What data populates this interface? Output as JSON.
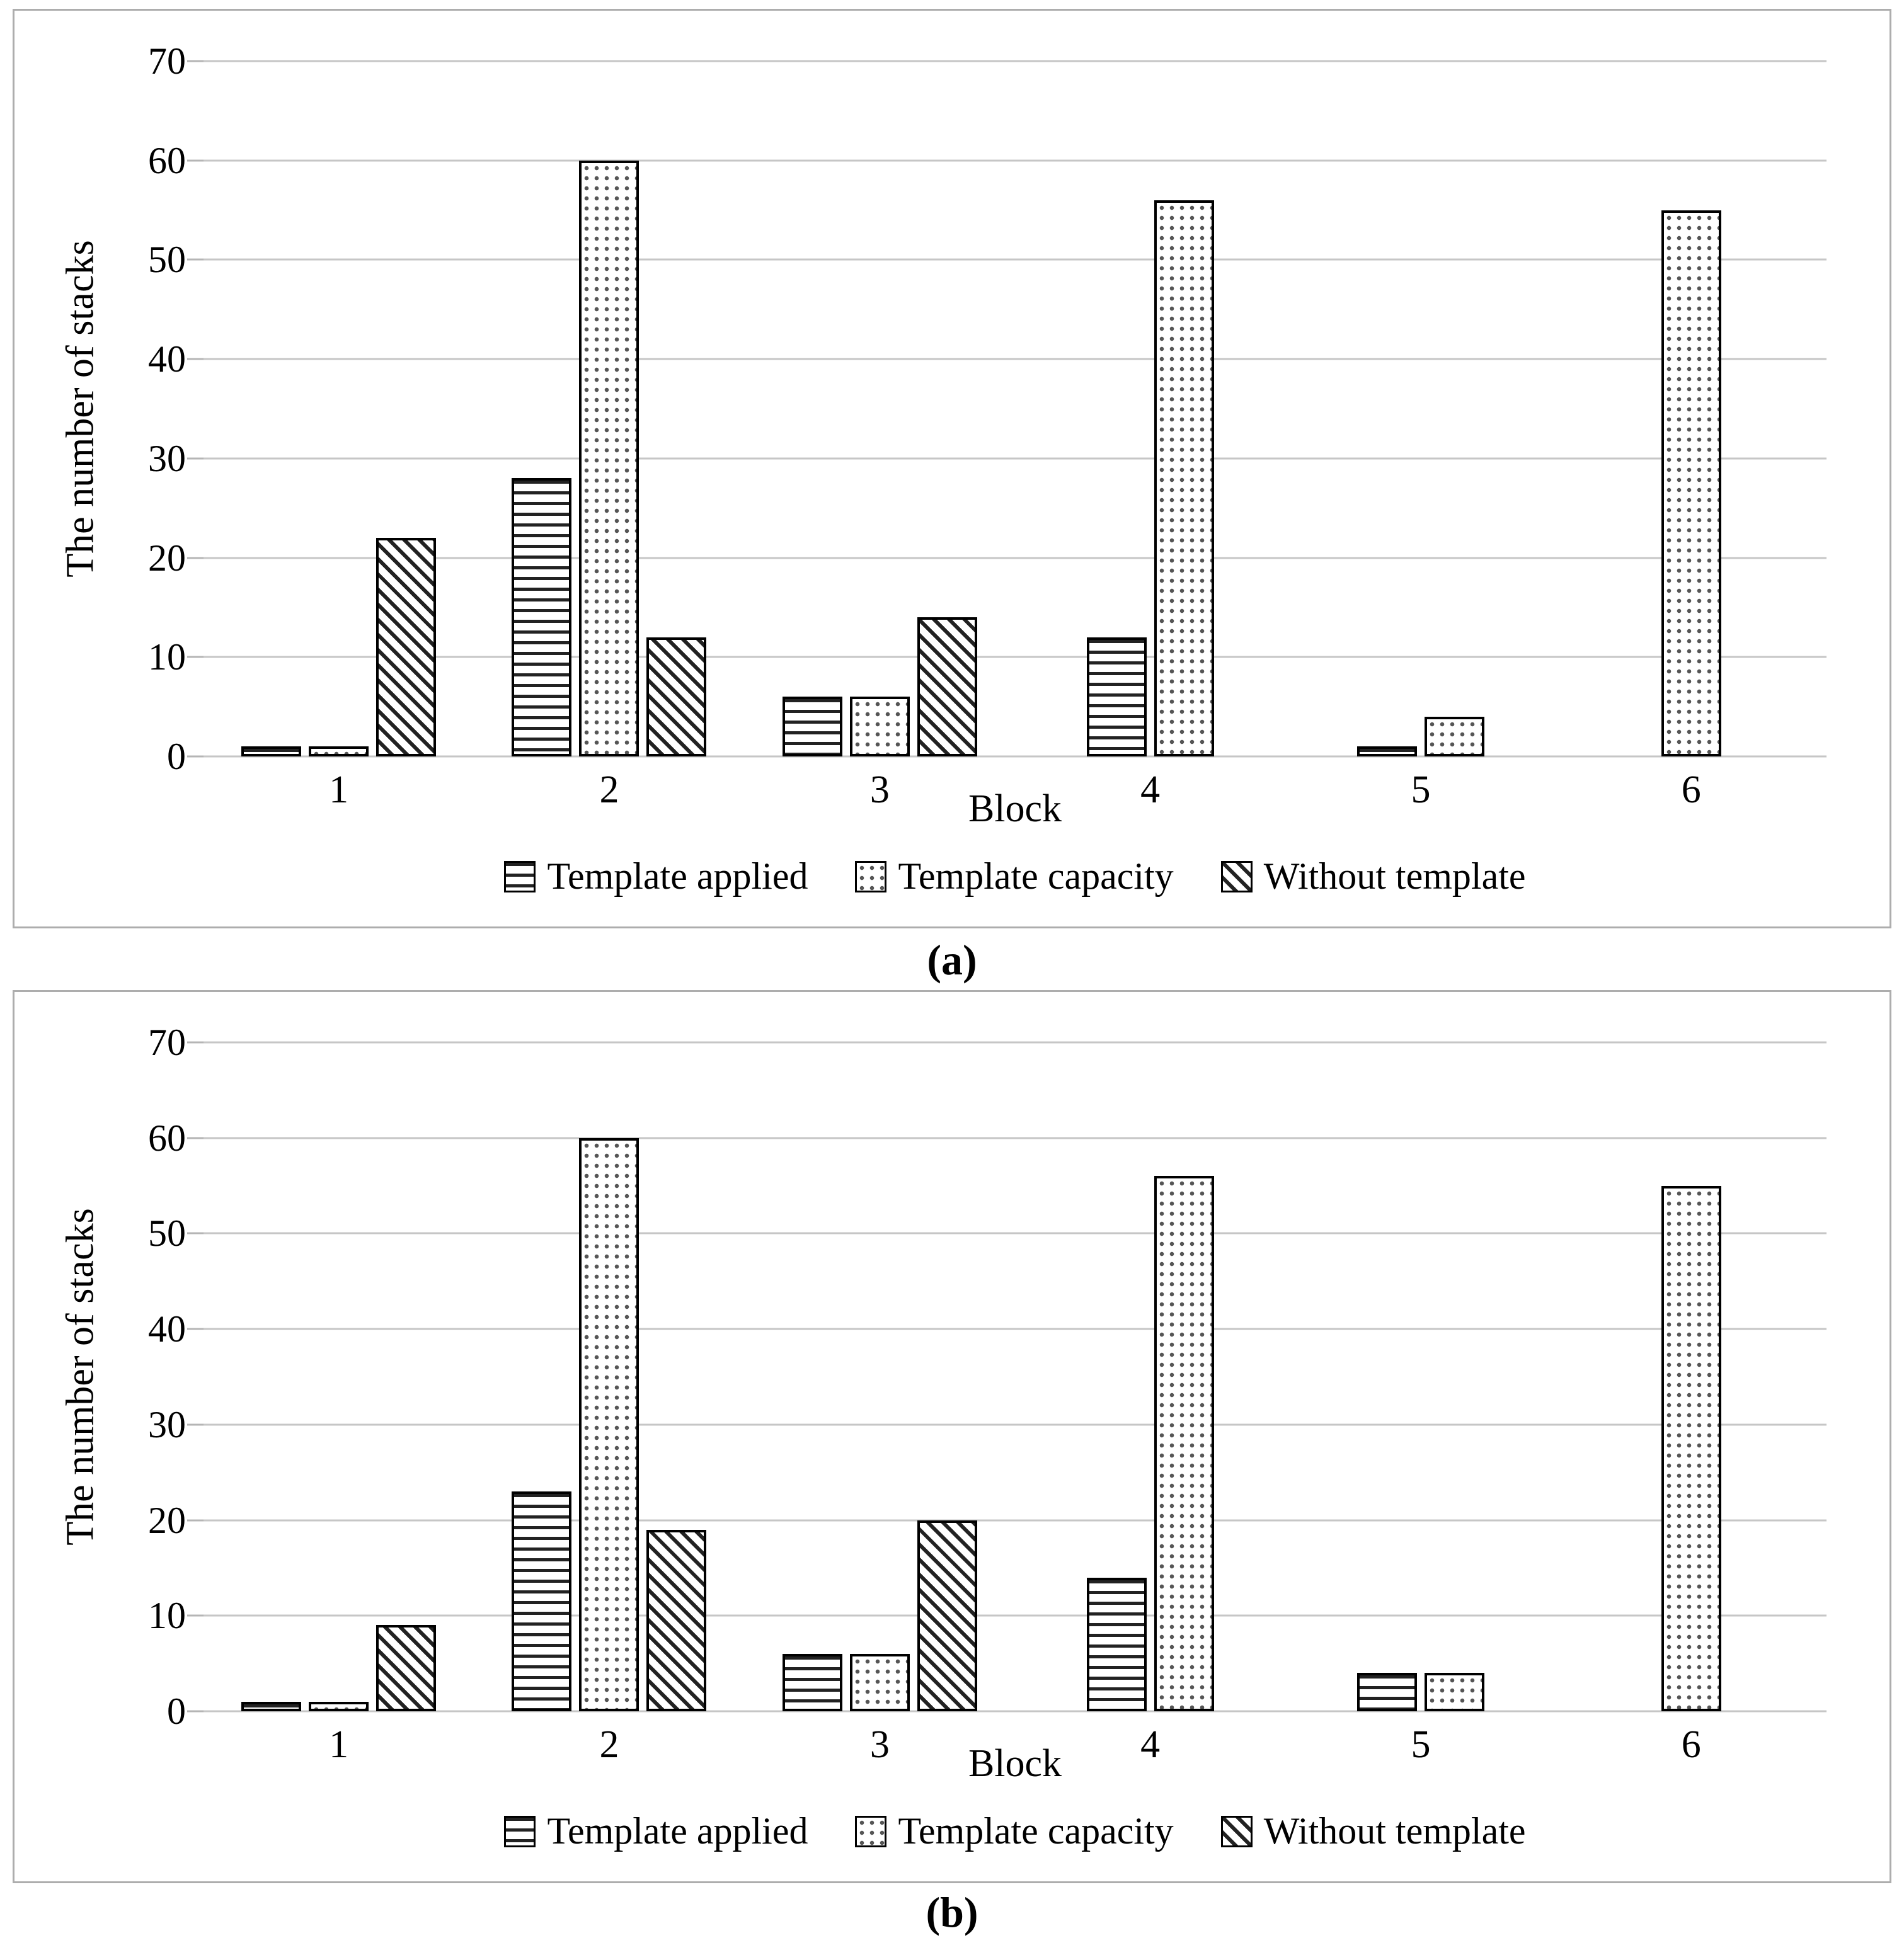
{
  "chart_data": [
    {
      "type": "bar",
      "title": "(a)",
      "categories": [
        "1",
        "2",
        "3",
        "4",
        "5",
        "6"
      ],
      "xlabel": "Block",
      "ylabel": "The number of stacks",
      "ylim": [
        0,
        70
      ],
      "yticks": [
        0,
        10,
        20,
        30,
        40,
        50,
        60,
        70
      ],
      "grid": "horizontal",
      "legend_position": "bottom",
      "series": [
        {
          "name": "Template applied",
          "pattern": "hlines",
          "values": [
            1,
            28,
            6,
            12,
            1,
            0
          ]
        },
        {
          "name": "Template capacity",
          "pattern": "dots",
          "values": [
            1,
            60,
            6,
            56,
            4,
            55
          ]
        },
        {
          "name": "Without template",
          "pattern": "diag",
          "values": [
            22,
            12,
            14,
            0,
            0,
            0
          ]
        }
      ]
    },
    {
      "type": "bar",
      "title": "(b)",
      "categories": [
        "1",
        "2",
        "3",
        "4",
        "5",
        "6"
      ],
      "xlabel": "Block",
      "ylabel": "The number of stacks",
      "ylim": [
        0,
        70
      ],
      "yticks": [
        0,
        10,
        20,
        30,
        40,
        50,
        60,
        70
      ],
      "grid": "horizontal",
      "legend_position": "bottom",
      "series": [
        {
          "name": "Template applied",
          "pattern": "hlines",
          "values": [
            1,
            23,
            6,
            14,
            4,
            0
          ]
        },
        {
          "name": "Template capacity",
          "pattern": "dots",
          "values": [
            1,
            60,
            6,
            56,
            4,
            55
          ]
        },
        {
          "name": "Without template",
          "pattern": "diag",
          "values": [
            9,
            19,
            20,
            0,
            0,
            0
          ]
        }
      ]
    }
  ],
  "colors": {
    "bar_outline": "#000000",
    "gridline": "#c6c6c6",
    "panel_border": "#adadad",
    "text": "#000000",
    "background": "#ffffff"
  }
}
